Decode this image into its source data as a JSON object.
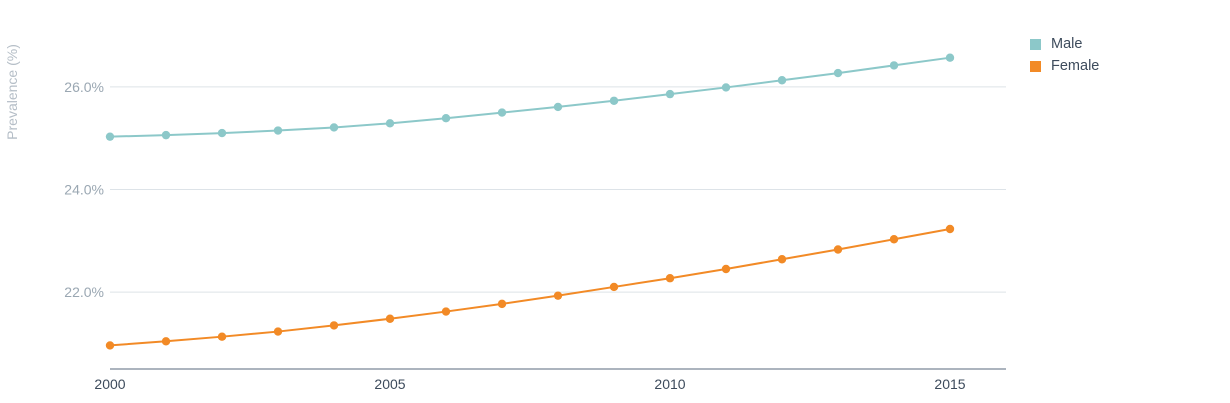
{
  "chart_data": {
    "type": "line",
    "ylabel": "Prevalence (%)",
    "xlabel": "",
    "x": [
      2000,
      2001,
      2002,
      2003,
      2004,
      2005,
      2006,
      2007,
      2008,
      2009,
      2010,
      2011,
      2012,
      2013,
      2014,
      2015
    ],
    "xticks": [
      2000,
      2005,
      2010,
      2015
    ],
    "xtick_labels": [
      "2000",
      "2005",
      "2010",
      "2015"
    ],
    "xlim": [
      2000,
      2016
    ],
    "ylim": [
      20.5,
      27.5
    ],
    "yticks": [
      22,
      24,
      26
    ],
    "ytick_labels": [
      "22.0%",
      "24.0%",
      "26.0%"
    ],
    "grid": "horizontal",
    "legend_position": "top-right",
    "series": [
      {
        "name": "Male",
        "color": "#8cc8c9",
        "values": [
          25.03,
          25.06,
          25.1,
          25.15,
          25.21,
          25.29,
          25.39,
          25.5,
          25.61,
          25.73,
          25.86,
          25.99,
          26.13,
          26.27,
          26.42,
          26.57
        ]
      },
      {
        "name": "Female",
        "color": "#f28a26",
        "values": [
          20.96,
          21.04,
          21.13,
          21.23,
          21.35,
          21.48,
          21.62,
          21.77,
          21.93,
          22.1,
          22.27,
          22.45,
          22.64,
          22.83,
          23.03,
          23.23
        ]
      }
    ]
  }
}
